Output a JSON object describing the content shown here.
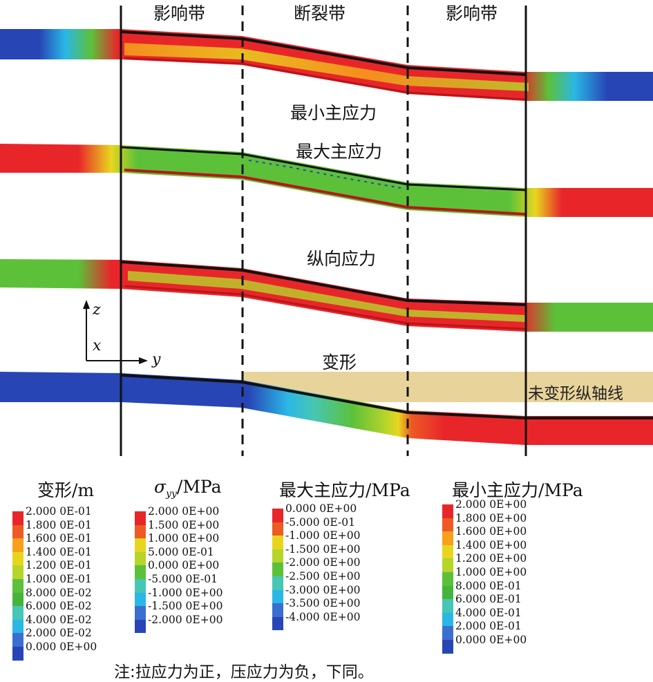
{
  "zones": {
    "left_influence": "影响带",
    "fracture": "断裂带",
    "right_influence": "影响带"
  },
  "pipes": [
    {
      "key": "min_principal",
      "label": "最小主应力"
    },
    {
      "key": "max_principal",
      "label": "最大主应力"
    },
    {
      "key": "longitudinal",
      "label": "纵向应力"
    },
    {
      "key": "deformation",
      "label": "变形"
    }
  ],
  "undeformed_axis_label": "未变形纵轴线",
  "axes": {
    "z": "z",
    "x": "x",
    "y": "y"
  },
  "legends": [
    {
      "key": "deformation",
      "title": "变形/m",
      "ticks": [
        "2.000 0E-01",
        "1.800 0E-01",
        "1.600 0E-01",
        "1.400 0E-01",
        "1.200 0E-01",
        "1.000 0E-01",
        "8.000 0E-02",
        "6.000 0E-02",
        "4.000 0E-02",
        "2.000 0E-02",
        "0.000 0E+00"
      ]
    },
    {
      "key": "syy",
      "title_symbol": "σ",
      "title_sub": "yy",
      "title_unit": "/MPa",
      "ticks": [
        "2.000 0E+00",
        "1.500 0E+00",
        "1.000 0E+00",
        "5.000 0E-01",
        "0.000 0E+00",
        "-5.000 0E-01",
        "-1.000 0E+00",
        "-1.500 0E+00",
        "-2.000 0E+00"
      ]
    },
    {
      "key": "max_principal",
      "title": "最大主应力/MPa",
      "ticks": [
        "0.000 0E+00",
        "-5.000 0E-01",
        "-1.000 0E+00",
        "-1.500 0E+00",
        "-2.000 0E+00",
        "-2.500 0E+00",
        "-3.000 0E+00",
        "-3.500 0E+00",
        "-4.000 0E+00"
      ]
    },
    {
      "key": "min_principal",
      "title": "最小主应力/MPa",
      "ticks": [
        "2.000 0E+00",
        "1.800 0E+00",
        "1.600 0E+00",
        "1.400 0E+00",
        "1.200 0E+00",
        "1.000 0E+00",
        "8.000 0E-01",
        "6.000 0E-01",
        "4.000 0E-01",
        "2.000 0E-01",
        "0.000 0E+00"
      ]
    }
  ],
  "colors": {
    "red": "#e8262a",
    "orange_red": "#ee5a24",
    "orange": "#f7a01c",
    "yellow": "#e8d61e",
    "yellow_green": "#b6d42a",
    "green": "#5cc139",
    "green2": "#44b43c",
    "teal": "#46c6b4",
    "cyan": "#2ab7e6",
    "blue_light": "#3a6fd0",
    "blue": "#2745b5",
    "tan": "#e8d49a"
  },
  "note": "注:拉应力为正，压应力为负，下同。"
}
